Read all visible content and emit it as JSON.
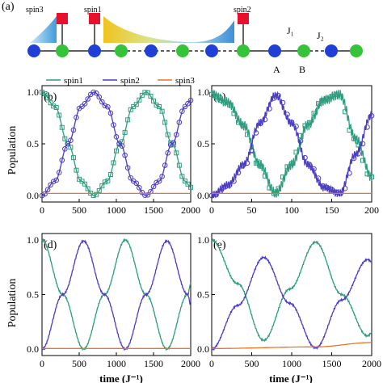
{
  "schematic": {
    "panel_label": "(a)",
    "spin_labels": [
      "spin3",
      "spin1",
      "spin2"
    ],
    "coupling_labels": [
      "J₁",
      "J₂"
    ],
    "site_labels": [
      "A",
      "B"
    ],
    "colors": {
      "site_a": "#1f3fd6",
      "site_b": "#35c33a",
      "spin": "#e8112d"
    }
  },
  "legend": [
    "spin1",
    "spin2",
    "spin3"
  ],
  "y_axis_label": "Population",
  "x_axis_label": "time (J⁻¹)",
  "colors": {
    "spin1": "#2e9c7e",
    "spin2": "#4a3cc4",
    "spin3": "#e8742a"
  },
  "chart_data": [
    {
      "type": "line",
      "panel": "(b)",
      "xlim": [
        0,
        2000
      ],
      "ylim": [
        0,
        1.0
      ],
      "xticks": [
        "0",
        "500",
        "1000",
        "1500",
        "2000"
      ],
      "yticks": [
        "0.0",
        "0.5",
        "1.0"
      ],
      "markers": "open squares (spin1) and open circles (spin2) on lines",
      "series": [
        {
          "name": "spin1",
          "x": [
            0,
            175,
            350,
            525,
            700,
            875,
            1050,
            1225,
            1400,
            1575,
            1750,
            1925,
            2000
          ],
          "values": [
            1.0,
            0.86,
            0.5,
            0.14,
            0.0,
            0.14,
            0.5,
            0.86,
            1.0,
            0.86,
            0.5,
            0.14,
            0.08
          ]
        },
        {
          "name": "spin2",
          "x": [
            0,
            175,
            350,
            525,
            700,
            875,
            1050,
            1225,
            1400,
            1575,
            1750,
            1925,
            2000
          ],
          "values": [
            0.0,
            0.14,
            0.5,
            0.86,
            1.0,
            0.86,
            0.5,
            0.14,
            0.0,
            0.14,
            0.5,
            0.86,
            0.92
          ]
        },
        {
          "name": "spin3",
          "x": [
            0,
            2000
          ],
          "values": [
            0.02,
            0.02
          ]
        }
      ]
    },
    {
      "type": "line",
      "panel": "(c)",
      "xlim": [
        0,
        200
      ],
      "ylim": [
        0,
        1.0
      ],
      "xticks": [
        "0",
        "50",
        "100",
        "150",
        "200"
      ],
      "yticks": [
        "0.0",
        "0.5",
        "1.0"
      ],
      "markers": "open squares (spin1) and open circles (spin2); solid lines oscillate",
      "series": [
        {
          "name": "spin1",
          "x": [
            0,
            20,
            40,
            60,
            80,
            100,
            120,
            140,
            160,
            180,
            200
          ],
          "values": [
            0.98,
            0.9,
            0.68,
            0.3,
            0.02,
            0.3,
            0.68,
            0.92,
            0.98,
            0.55,
            0.18
          ]
        },
        {
          "name": "spin2",
          "x": [
            0,
            20,
            40,
            60,
            80,
            100,
            120,
            140,
            160,
            180,
            200
          ],
          "values": [
            0.0,
            0.1,
            0.3,
            0.7,
            0.97,
            0.7,
            0.3,
            0.08,
            0.02,
            0.4,
            0.78
          ]
        },
        {
          "name": "spin3",
          "x": [
            0,
            200
          ],
          "values": [
            0.02,
            0.02
          ]
        }
      ]
    },
    {
      "type": "line",
      "panel": "(d)",
      "xlim": [
        0,
        2000
      ],
      "ylim": [
        0,
        1.0
      ],
      "xticks": [
        "0",
        "500",
        "1000",
        "1500",
        "2000"
      ],
      "yticks": [
        "0.0",
        "0.5",
        "1.0"
      ],
      "series": [
        {
          "name": "spin1",
          "x": [
            0,
            280,
            560,
            840,
            1120,
            1400,
            1680,
            1960,
            2000
          ],
          "values": [
            1.0,
            0.5,
            0.0,
            0.5,
            1.0,
            0.5,
            0.0,
            0.5,
            0.6
          ]
        },
        {
          "name": "spin2",
          "x": [
            0,
            280,
            560,
            840,
            1120,
            1400,
            1680,
            1960,
            2000
          ],
          "values": [
            0.0,
            0.5,
            0.99,
            0.5,
            0.0,
            0.5,
            0.99,
            0.5,
            0.4
          ]
        },
        {
          "name": "spin3",
          "x": [
            0,
            2000
          ],
          "values": [
            0.005,
            0.005
          ]
        }
      ]
    },
    {
      "type": "line",
      "panel": "(e)",
      "xlim": [
        0,
        2000
      ],
      "ylim": [
        0,
        1.0
      ],
      "xticks": [
        "0",
        "500",
        "1000",
        "1500",
        "2000"
      ],
      "yticks": [
        "0.0",
        "0.5",
        "1.0"
      ],
      "series": [
        {
          "name": "spin1",
          "x": [
            0,
            325,
            650,
            975,
            1300,
            1625,
            1950,
            2000
          ],
          "values": [
            1.0,
            0.6,
            0.08,
            0.55,
            0.98,
            0.5,
            0.12,
            0.15
          ]
        },
        {
          "name": "spin2",
          "x": [
            0,
            325,
            650,
            975,
            1300,
            1625,
            1950,
            2000
          ],
          "values": [
            0.0,
            0.4,
            0.84,
            0.42,
            0.01,
            0.45,
            0.82,
            0.8
          ]
        },
        {
          "name": "spin3",
          "x": [
            0,
            1300,
            2000
          ],
          "values": [
            0.005,
            0.02,
            0.06
          ]
        }
      ]
    }
  ]
}
